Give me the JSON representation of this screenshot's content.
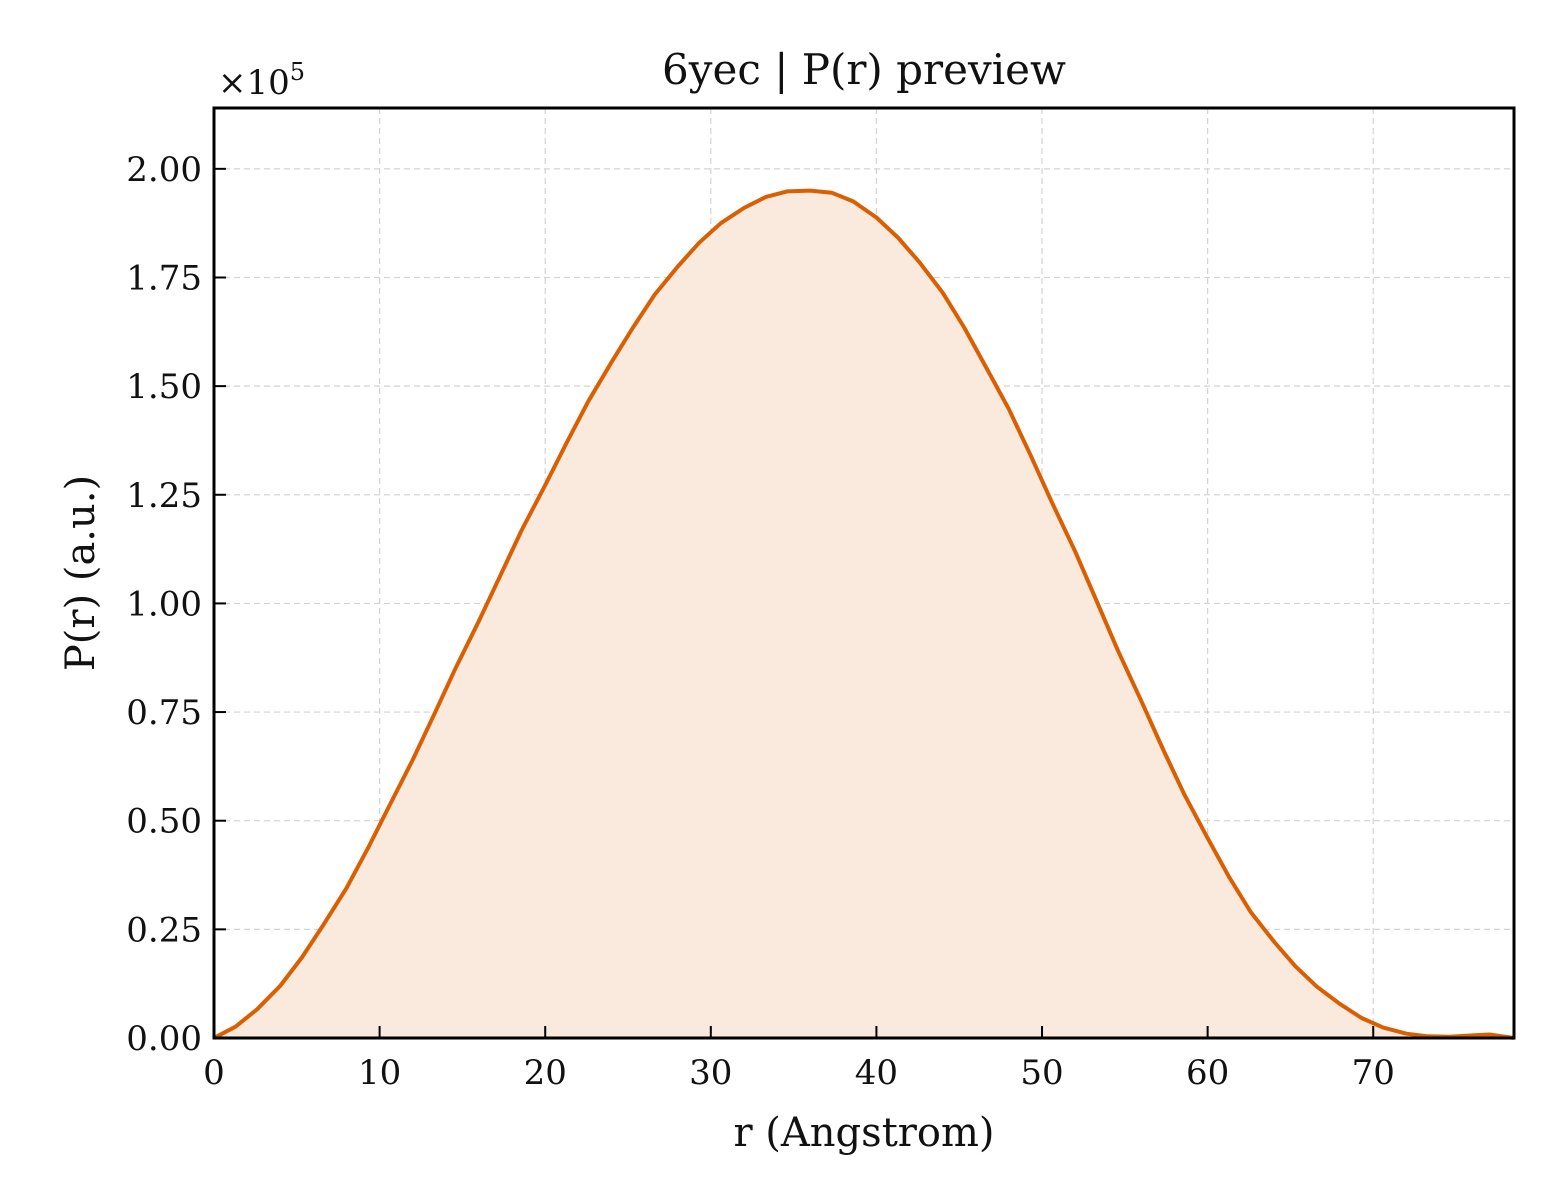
{
  "chart_data": {
    "type": "area",
    "title": "6yec | P(r) preview",
    "xlabel": "r (Angstrom)",
    "ylabel": "P(r) (a.u.)",
    "y_offset_label": "×10",
    "y_offset_exponent": "5",
    "xlim": [
      0,
      78.5
    ],
    "ylim": [
      0,
      2.14
    ],
    "x_ticks": [
      0,
      10,
      20,
      30,
      40,
      50,
      60,
      70
    ],
    "x_tick_labels": [
      "0",
      "10",
      "20",
      "30",
      "40",
      "50",
      "60",
      "70"
    ],
    "y_ticks": [
      0,
      0.25,
      0.5,
      0.75,
      1.0,
      1.25,
      1.5,
      1.75,
      2.0
    ],
    "y_tick_labels": [
      "0.00",
      "0.25",
      "0.50",
      "0.75",
      "1.00",
      "1.25",
      "1.50",
      "1.75",
      "2.00"
    ],
    "grid": true,
    "line_color": "#d95f02",
    "fill_color": "#fae9dd",
    "series": [
      {
        "x": [
          0,
          1.3,
          2.6,
          4.0,
          5.3,
          6.6,
          8.0,
          9.3,
          10.6,
          12.0,
          13.3,
          14.6,
          16.0,
          17.3,
          18.6,
          20.0,
          21.3,
          22.6,
          24.0,
          25.3,
          26.6,
          28.0,
          29.3,
          30.6,
          32.0,
          33.3,
          34.6,
          36.0,
          37.3,
          38.6,
          40.0,
          41.3,
          42.6,
          44.0,
          45.3,
          46.6,
          48.0,
          49.3,
          50.6,
          52.0,
          53.3,
          54.6,
          56.0,
          57.3,
          58.6,
          60.0,
          61.3,
          62.6,
          64.0,
          65.3,
          66.6,
          68.0,
          69.3,
          70.6,
          72.0,
          73.3,
          74.6,
          76.0,
          77.0,
          78.5
        ],
        "y": [
          0.0,
          0.026,
          0.066,
          0.12,
          0.185,
          0.26,
          0.345,
          0.437,
          0.535,
          0.64,
          0.745,
          0.852,
          0.96,
          1.065,
          1.17,
          1.272,
          1.37,
          1.465,
          1.555,
          1.635,
          1.71,
          1.775,
          1.83,
          1.875,
          1.91,
          1.935,
          1.948,
          1.95,
          1.945,
          1.925,
          1.888,
          1.842,
          1.785,
          1.715,
          1.635,
          1.545,
          1.447,
          1.342,
          1.232,
          1.12,
          1.005,
          0.89,
          0.775,
          0.665,
          0.56,
          0.46,
          0.37,
          0.29,
          0.222,
          0.165,
          0.118,
          0.078,
          0.046,
          0.024,
          0.01,
          0.004,
          0.003,
          0.006,
          0.008,
          0.0
        ]
      }
    ]
  }
}
